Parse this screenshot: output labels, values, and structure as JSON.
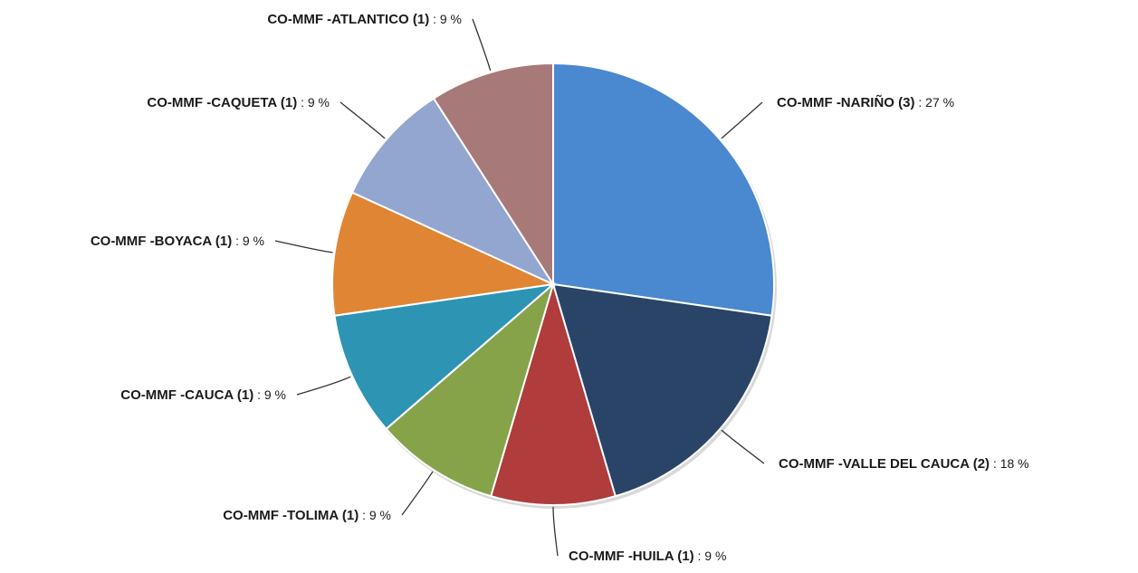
{
  "chart_data": {
    "type": "pie",
    "title": "",
    "separator": " : ",
    "slices": [
      {
        "label": "CO-MMF -NARIÑO (3)",
        "value": 3,
        "percent_label": "27 %",
        "color": "#4a88cf"
      },
      {
        "label": "CO-MMF -VALLE DEL CAUCA (2)",
        "value": 2,
        "percent_label": "18 %",
        "color": "#2a4468"
      },
      {
        "label": "CO-MMF -HUILA (1)",
        "value": 1,
        "percent_label": "9 %",
        "color": "#b03c3c"
      },
      {
        "label": "CO-MMF -TOLIMA (1)",
        "value": 1,
        "percent_label": "9 %",
        "color": "#86a34a"
      },
      {
        "label": "CO-MMF -CAUCA (1)",
        "value": 1,
        "percent_label": "9 %",
        "color": "#2d95b3"
      },
      {
        "label": "CO-MMF -BOYACA (1)",
        "value": 1,
        "percent_label": "9 %",
        "color": "#e08533"
      },
      {
        "label": "CO-MMF -CAQUETA (1)",
        "value": 1,
        "percent_label": "9 %",
        "color": "#93a6cf"
      },
      {
        "label": "CO-MMF -ATLANTICO (1)",
        "value": 1,
        "percent_label": "9 %",
        "color": "#a87979"
      }
    ]
  }
}
